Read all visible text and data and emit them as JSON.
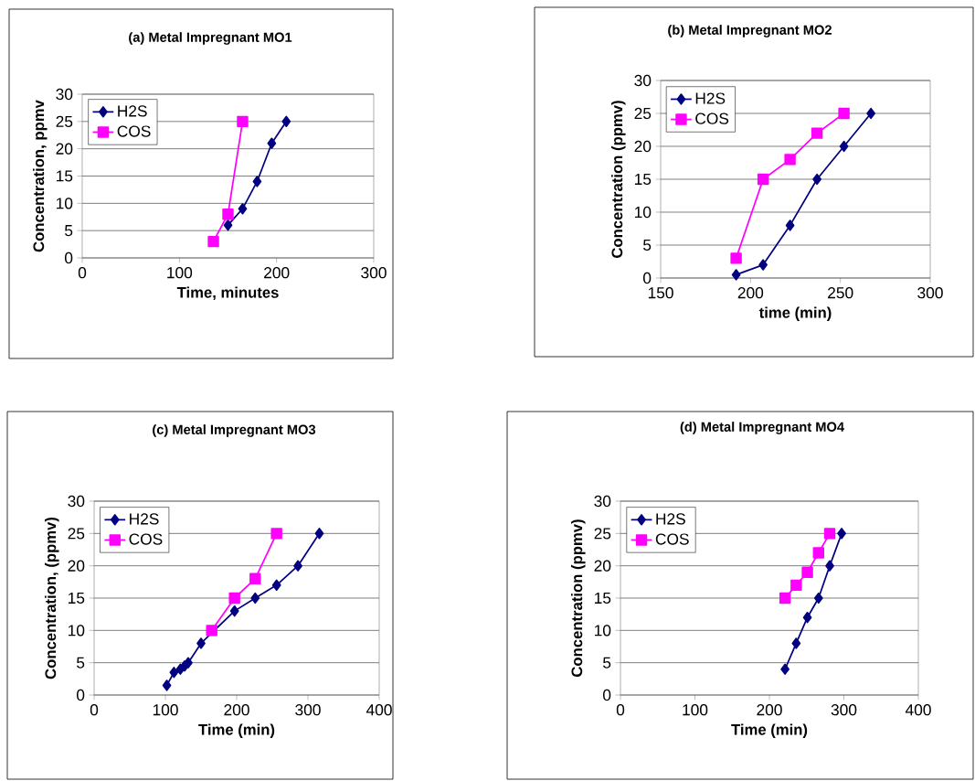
{
  "chart_data": [
    {
      "type": "line",
      "title": "(a) Metal Impregnant MO1",
      "xlabel": "Time, minutes",
      "ylabel": "Concentration, ppmv",
      "xlim": [
        0,
        300
      ],
      "xticks": [
        0,
        100,
        200,
        300
      ],
      "ylim": [
        0,
        30
      ],
      "yticks": [
        0,
        5,
        10,
        15,
        20,
        25,
        30
      ],
      "grid": "y",
      "legend": "top left",
      "series": [
        {
          "name": "H2S",
          "color": "#000080",
          "marker": "diamond",
          "x": [
            150,
            165,
            180,
            195,
            210
          ],
          "values": [
            6,
            9,
            14,
            21,
            25
          ]
        },
        {
          "name": "COS",
          "color": "#ff00ff",
          "marker": "square",
          "x": [
            135,
            150,
            165
          ],
          "values": [
            3,
            8,
            25
          ]
        }
      ]
    },
    {
      "type": "line",
      "title": "(b) Metal Impregnant MO2",
      "xlabel": "time (min)",
      "ylabel": "Concentration (ppmv)",
      "xlim": [
        150,
        300
      ],
      "xticks": [
        150,
        200,
        250,
        300
      ],
      "ylim": [
        0,
        30
      ],
      "yticks": [
        0,
        5,
        10,
        15,
        20,
        25,
        30
      ],
      "grid": "y",
      "legend": "top left",
      "series": [
        {
          "name": "H2S",
          "color": "#000080",
          "marker": "diamond",
          "x": [
            192,
            207,
            222,
            237,
            252,
            267
          ],
          "values": [
            0.5,
            2,
            8,
            15,
            20,
            25
          ]
        },
        {
          "name": "COS",
          "color": "#ff00ff",
          "marker": "square",
          "x": [
            192,
            207,
            222,
            237,
            252
          ],
          "values": [
            3,
            15,
            18,
            22,
            25
          ]
        }
      ]
    },
    {
      "type": "line",
      "title": "(c) Metal Impregnant MO3",
      "xlabel": "Time (min)",
      "ylabel": "Concentration, (ppmv)",
      "xlim": [
        0,
        400
      ],
      "xticks": [
        0,
        100,
        200,
        300,
        400
      ],
      "ylim": [
        0,
        30
      ],
      "yticks": [
        0,
        5,
        10,
        15,
        20,
        25,
        30
      ],
      "grid": "y",
      "legend": "top left",
      "series": [
        {
          "name": "H2S",
          "color": "#000080",
          "marker": "diamond",
          "x": [
            102,
            112,
            121,
            127,
            132,
            150,
            197,
            226,
            256,
            286,
            316
          ],
          "values": [
            1.5,
            3.5,
            4,
            4.5,
            5,
            8,
            13,
            15,
            17,
            20,
            25
          ]
        },
        {
          "name": "COS",
          "color": "#ff00ff",
          "marker": "square",
          "x": [
            165,
            197,
            226,
            256
          ],
          "values": [
            10,
            15,
            18,
            25
          ]
        }
      ]
    },
    {
      "type": "line",
      "title": "(d) Metal Impregnant MO4",
      "xlabel": "Time (min)",
      "ylabel": "Concentration (ppmv)",
      "xlim": [
        0,
        400
      ],
      "xticks": [
        0,
        100,
        200,
        300,
        400
      ],
      "ylim": [
        0,
        30
      ],
      "yticks": [
        0,
        5,
        10,
        15,
        20,
        25,
        30
      ],
      "grid": "y",
      "legend": "top left",
      "series": [
        {
          "name": "H2S",
          "color": "#000080",
          "marker": "diamond",
          "x": [
            221,
            236,
            251,
            266,
            281,
            297
          ],
          "values": [
            4,
            8,
            12,
            15,
            20,
            25
          ]
        },
        {
          "name": "COS",
          "color": "#ff00ff",
          "marker": "square",
          "x": [
            221,
            236,
            251,
            266,
            281
          ],
          "values": [
            15,
            17,
            19,
            22,
            25
          ]
        }
      ]
    }
  ]
}
